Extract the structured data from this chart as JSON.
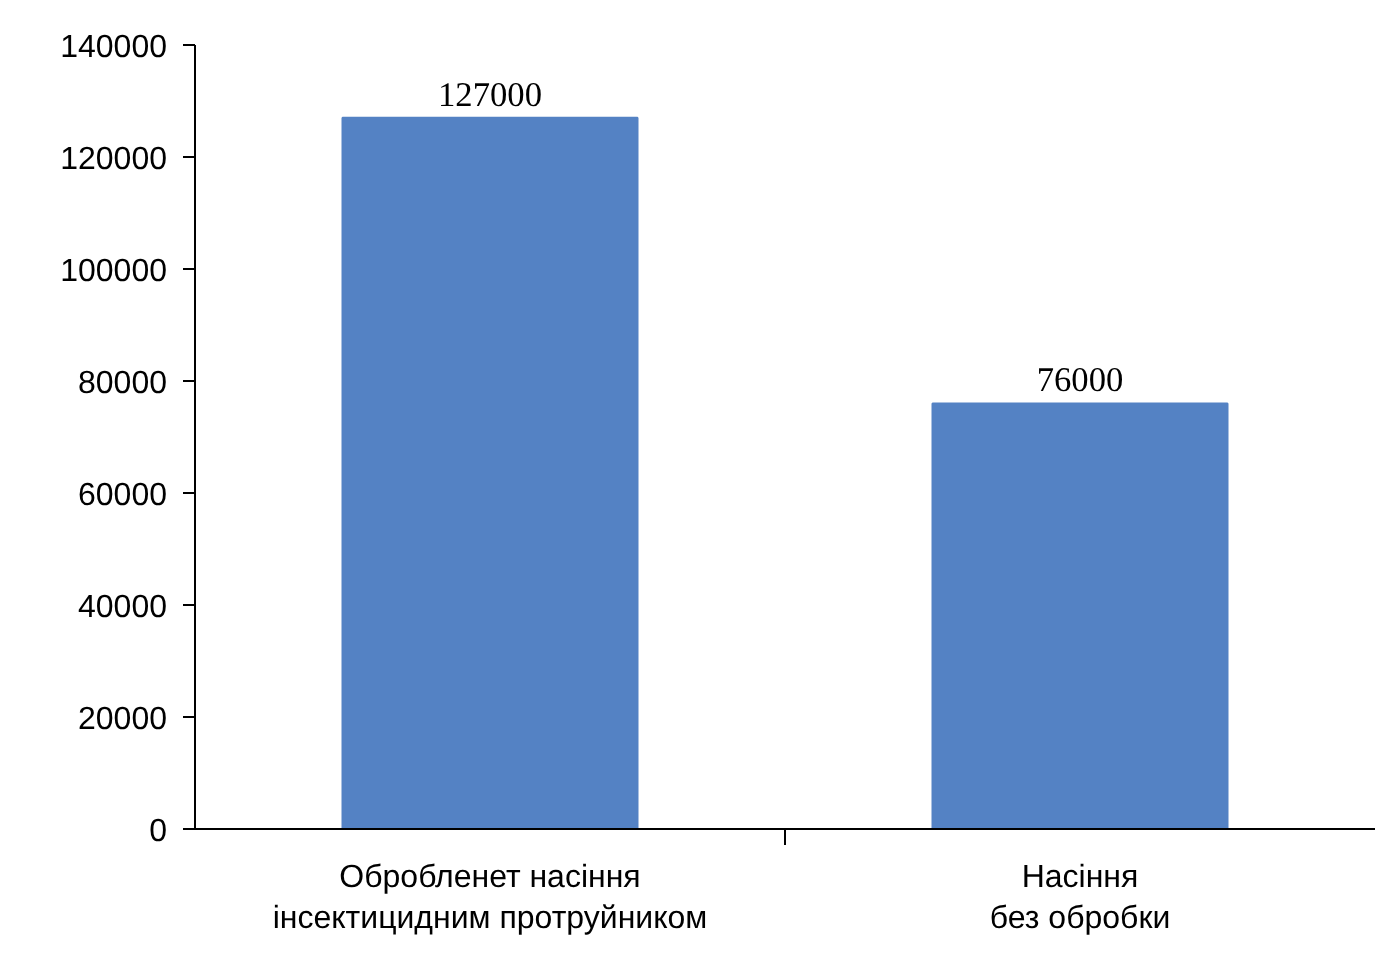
{
  "chart_data": {
    "type": "bar",
    "categories": [
      "Обробленет насіння\nінсектицидним протруйником",
      "Насіння\nбез обробки"
    ],
    "values": [
      127000,
      76000
    ],
    "color": "#5482c4",
    "ylim": [
      0,
      140000
    ],
    "yticks": [
      0,
      20000,
      40000,
      60000,
      80000,
      100000,
      120000,
      140000
    ],
    "data_labels": true,
    "grid": false
  }
}
